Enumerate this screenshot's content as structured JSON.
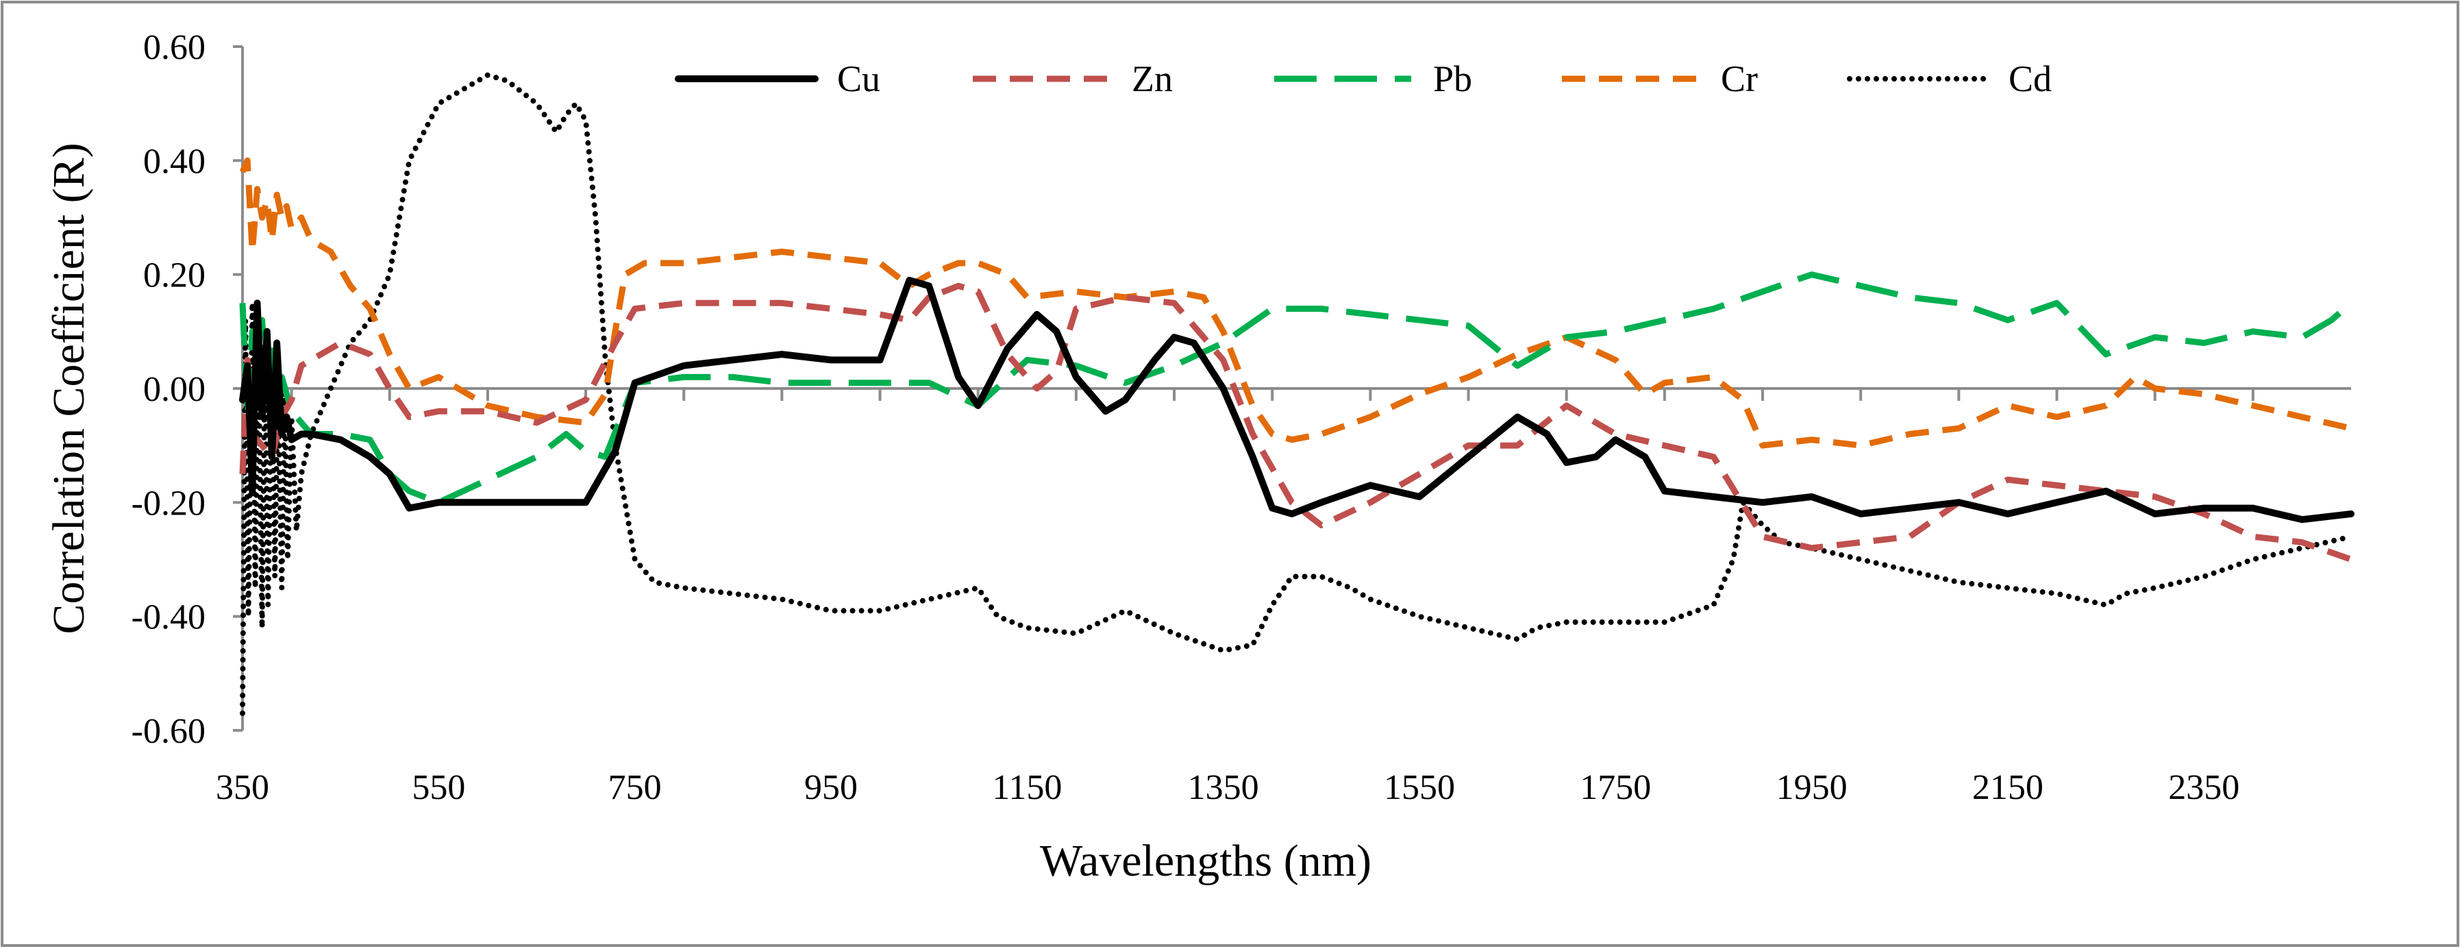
{
  "chart_data": {
    "type": "line",
    "title": "",
    "xlabel": "Wavelengths (nm)",
    "ylabel": "Correlation Coefficient (R)",
    "xlim": [
      350,
      2500
    ],
    "ylim": [
      -0.6,
      0.6
    ],
    "xticks": [
      350,
      550,
      750,
      950,
      1150,
      1350,
      1550,
      1750,
      1950,
      2150,
      2350
    ],
    "yticks": [
      -0.6,
      -0.4,
      -0.2,
      0.0,
      0.2,
      0.4,
      0.6
    ],
    "ytick_labels": [
      "-0.60",
      "-0.40",
      "-0.20",
      "0.00",
      "0.20",
      "0.40",
      "0.60"
    ],
    "legend_position": "top",
    "grid": false,
    "series": [
      {
        "name": "Cu",
        "color": "#000000",
        "style": "solid",
        "x": [
          350,
          355,
          360,
          365,
          370,
          375,
          380,
          385,
          390,
          395,
          400,
          410,
          420,
          450,
          480,
          500,
          520,
          550,
          600,
          650,
          700,
          730,
          750,
          800,
          850,
          900,
          950,
          1000,
          1030,
          1050,
          1080,
          1100,
          1130,
          1160,
          1180,
          1200,
          1230,
          1250,
          1280,
          1300,
          1320,
          1350,
          1380,
          1400,
          1420,
          1450,
          1500,
          1550,
          1600,
          1650,
          1680,
          1700,
          1730,
          1750,
          1780,
          1800,
          1850,
          1900,
          1950,
          2000,
          2100,
          2150,
          2200,
          2250,
          2300,
          2350,
          2400,
          2450,
          2500
        ],
        "y": [
          -0.02,
          0.04,
          -0.18,
          0.15,
          -0.05,
          0.1,
          -0.12,
          0.08,
          -0.08,
          -0.05,
          -0.09,
          -0.08,
          -0.08,
          -0.09,
          -0.12,
          -0.15,
          -0.21,
          -0.2,
          -0.2,
          -0.2,
          -0.2,
          -0.11,
          0.01,
          0.04,
          0.05,
          0.06,
          0.05,
          0.05,
          0.19,
          0.18,
          0.02,
          -0.03,
          0.07,
          0.13,
          0.1,
          0.02,
          -0.04,
          -0.02,
          0.05,
          0.09,
          0.08,
          0.0,
          -0.12,
          -0.21,
          -0.22,
          -0.2,
          -0.17,
          -0.19,
          -0.12,
          -0.05,
          -0.08,
          -0.13,
          -0.12,
          -0.09,
          -0.12,
          -0.18,
          -0.19,
          -0.2,
          -0.19,
          -0.22,
          -0.2,
          -0.22,
          -0.2,
          -0.18,
          -0.22,
          -0.21,
          -0.21,
          -0.23,
          -0.22
        ]
      },
      {
        "name": "Zn",
        "color": "#C0504D",
        "style": "dash",
        "x": [
          350,
          355,
          360,
          370,
          380,
          390,
          400,
          410,
          420,
          450,
          480,
          500,
          520,
          550,
          600,
          650,
          700,
          730,
          750,
          800,
          850,
          900,
          950,
          1000,
          1030,
          1050,
          1080,
          1100,
          1130,
          1160,
          1180,
          1200,
          1250,
          1300,
          1350,
          1380,
          1420,
          1450,
          1500,
          1550,
          1600,
          1650,
          1700,
          1750,
          1800,
          1850,
          1900,
          1950,
          2000,
          2050,
          2100,
          2150,
          2200,
          2250,
          2300,
          2350,
          2400,
          2450,
          2500
        ],
        "y": [
          -0.15,
          0.05,
          -0.08,
          -0.1,
          -0.12,
          -0.05,
          -0.02,
          0.04,
          0.05,
          0.08,
          0.06,
          0.0,
          -0.05,
          -0.04,
          -0.04,
          -0.06,
          -0.02,
          0.08,
          0.14,
          0.15,
          0.15,
          0.15,
          0.14,
          0.13,
          0.12,
          0.16,
          0.18,
          0.17,
          0.06,
          0.0,
          0.03,
          0.14,
          0.16,
          0.15,
          0.05,
          -0.08,
          -0.2,
          -0.24,
          -0.2,
          -0.15,
          -0.1,
          -0.1,
          -0.03,
          -0.08,
          -0.1,
          -0.12,
          -0.26,
          -0.28,
          -0.27,
          -0.26,
          -0.2,
          -0.16,
          -0.17,
          -0.18,
          -0.19,
          -0.22,
          -0.26,
          -0.27,
          -0.3
        ]
      },
      {
        "name": "Pb",
        "color": "#00B050",
        "style": "longdash",
        "x": [
          350,
          355,
          360,
          365,
          370,
          375,
          380,
          385,
          390,
          400,
          420,
          450,
          480,
          500,
          520,
          550,
          600,
          650,
          680,
          700,
          720,
          750,
          800,
          850,
          900,
          950,
          1000,
          1050,
          1100,
          1150,
          1200,
          1250,
          1300,
          1350,
          1400,
          1450,
          1500,
          1550,
          1600,
          1650,
          1700,
          1750,
          1800,
          1850,
          1900,
          1950,
          2000,
          2050,
          2100,
          2150,
          2200,
          2250,
          2300,
          2350,
          2400,
          2450,
          2480,
          2500
        ],
        "y": [
          0.15,
          -0.05,
          0.1,
          0.05,
          0.12,
          -0.03,
          0.08,
          -0.02,
          0.02,
          -0.04,
          -0.08,
          -0.08,
          -0.09,
          -0.15,
          -0.18,
          -0.2,
          -0.16,
          -0.12,
          -0.08,
          -0.11,
          -0.12,
          0.01,
          0.02,
          0.02,
          0.01,
          0.01,
          0.01,
          0.01,
          -0.03,
          0.05,
          0.04,
          0.01,
          0.04,
          0.08,
          0.14,
          0.14,
          0.13,
          0.12,
          0.11,
          0.04,
          0.09,
          0.1,
          0.12,
          0.14,
          0.17,
          0.2,
          0.18,
          0.16,
          0.15,
          0.12,
          0.15,
          0.06,
          0.09,
          0.08,
          0.1,
          0.09,
          0.12,
          0.15
        ]
      },
      {
        "name": "Cr",
        "color": "#E36C09",
        "style": "dash",
        "x": [
          350,
          355,
          360,
          365,
          370,
          375,
          380,
          385,
          390,
          395,
          400,
          410,
          420,
          440,
          460,
          480,
          500,
          520,
          550,
          600,
          650,
          700,
          720,
          730,
          740,
          760,
          800,
          850,
          900,
          950,
          1000,
          1030,
          1050,
          1080,
          1100,
          1130,
          1150,
          1200,
          1250,
          1300,
          1330,
          1350,
          1380,
          1400,
          1420,
          1450,
          1500,
          1550,
          1600,
          1650,
          1700,
          1750,
          1780,
          1800,
          1850,
          1880,
          1900,
          1950,
          2000,
          2050,
          2100,
          2150,
          2200,
          2250,
          2280,
          2300,
          2350,
          2400,
          2450,
          2500
        ],
        "y": [
          0.38,
          0.4,
          0.24,
          0.35,
          0.3,
          0.33,
          0.26,
          0.34,
          0.3,
          0.32,
          0.28,
          0.3,
          0.26,
          0.24,
          0.18,
          0.14,
          0.06,
          0.0,
          0.02,
          -0.03,
          -0.05,
          -0.06,
          -0.01,
          0.1,
          0.2,
          0.22,
          0.22,
          0.23,
          0.24,
          0.23,
          0.22,
          0.18,
          0.2,
          0.22,
          0.22,
          0.2,
          0.16,
          0.17,
          0.16,
          0.17,
          0.16,
          0.1,
          -0.03,
          -0.08,
          -0.09,
          -0.08,
          -0.05,
          -0.01,
          0.02,
          0.06,
          0.09,
          0.05,
          -0.01,
          0.01,
          0.02,
          -0.02,
          -0.1,
          -0.09,
          -0.1,
          -0.08,
          -0.07,
          -0.03,
          -0.05,
          -0.03,
          0.02,
          0.0,
          -0.01,
          -0.03,
          -0.05,
          -0.07
        ]
      },
      {
        "name": "Cd",
        "color": "#000000",
        "style": "dot",
        "x": [
          350,
          353,
          356,
          360,
          363,
          366,
          370,
          373,
          376,
          380,
          383,
          386,
          390,
          393,
          396,
          400,
          405,
          410,
          420,
          440,
          460,
          480,
          500,
          520,
          550,
          580,
          600,
          620,
          650,
          670,
          680,
          690,
          700,
          710,
          720,
          730,
          750,
          770,
          800,
          850,
          900,
          950,
          1000,
          1050,
          1100,
          1120,
          1150,
          1200,
          1250,
          1300,
          1350,
          1380,
          1400,
          1420,
          1450,
          1480,
          1500,
          1550,
          1600,
          1650,
          1670,
          1700,
          1750,
          1800,
          1850,
          1870,
          1880,
          1900,
          1920,
          1950,
          2000,
          2050,
          2100,
          2150,
          2200,
          2250,
          2270,
          2300,
          2350,
          2400,
          2450,
          2500
        ],
        "y": [
          -0.57,
          0.12,
          -0.4,
          0.15,
          -0.35,
          0.1,
          -0.42,
          0.08,
          -0.38,
          0.05,
          -0.33,
          0.02,
          -0.35,
          0.0,
          -0.3,
          -0.05,
          -0.25,
          -0.15,
          -0.08,
          0.0,
          0.08,
          0.12,
          0.2,
          0.4,
          0.5,
          0.53,
          0.55,
          0.54,
          0.5,
          0.45,
          0.48,
          0.5,
          0.47,
          0.3,
          0.05,
          -0.1,
          -0.3,
          -0.34,
          -0.35,
          -0.36,
          -0.37,
          -0.39,
          -0.39,
          -0.37,
          -0.35,
          -0.4,
          -0.42,
          -0.43,
          -0.39,
          -0.43,
          -0.46,
          -0.45,
          -0.38,
          -0.33,
          -0.33,
          -0.35,
          -0.37,
          -0.4,
          -0.42,
          -0.44,
          -0.42,
          -0.41,
          -0.41,
          -0.41,
          -0.38,
          -0.3,
          -0.2,
          -0.24,
          -0.27,
          -0.28,
          -0.3,
          -0.32,
          -0.34,
          -0.35,
          -0.36,
          -0.38,
          -0.36,
          -0.35,
          -0.33,
          -0.3,
          -0.28,
          -0.26
        ]
      }
    ]
  }
}
